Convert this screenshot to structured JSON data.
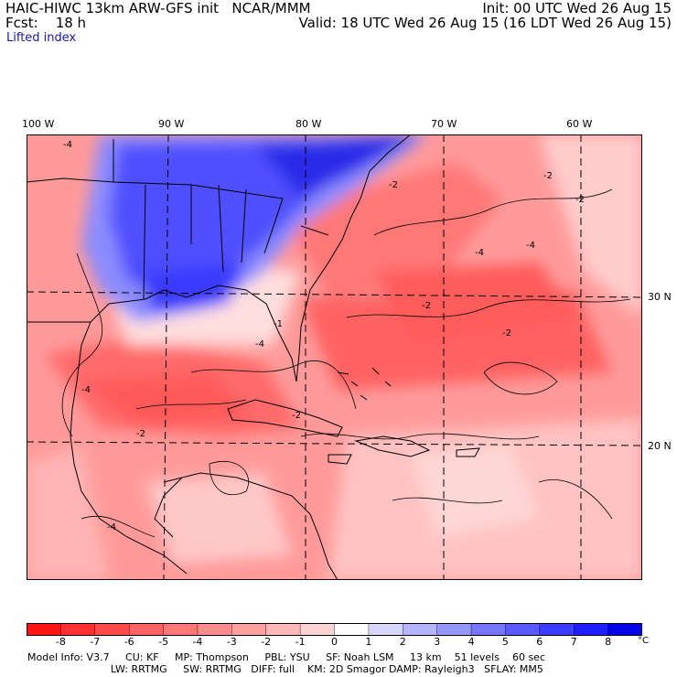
{
  "header": {
    "model": "HAIC-HIWC 13km ARW-GFS init",
    "org": "NCAR/MMM",
    "fcst": "Fcst:    18 h",
    "init": "Init: 00 UTC Wed 26 Aug 15",
    "valid": "Valid: 18 UTC Wed 26 Aug 15 (16 LDT Wed 26 Aug 15)",
    "field": "Lifted index"
  },
  "map": {
    "lon_labels": [
      "100 W",
      "90 W",
      "80 W",
      "70 W",
      "60 W"
    ],
    "lat_labels": [
      "30 N",
      "20 N"
    ],
    "contour_labels": [
      "-4",
      "-4",
      "-2",
      "-4",
      "-4",
      "-2",
      "-2",
      "-2",
      "-1",
      "-2",
      "-2",
      "-4",
      "-4",
      "-2"
    ]
  },
  "colorbar": {
    "ticks": [
      "-8",
      "-7",
      "-6",
      "-5",
      "-4",
      "-3",
      "-2",
      "-1",
      "0",
      "1",
      "2",
      "3",
      "4",
      "5",
      "6",
      "7",
      "8"
    ],
    "unit": "°C",
    "colors": [
      "#ff1414",
      "#ff3030",
      "#ff4a4a",
      "#ff6464",
      "#ff7878",
      "#ff8c8c",
      "#ffa0a0",
      "#ffb9b9",
      "#ffd2d2",
      "#ffffff",
      "#d6d6ff",
      "#b4b4ff",
      "#9696ff",
      "#7878ff",
      "#5a5aff",
      "#3c3cff",
      "#1e1eff",
      "#0000e6"
    ]
  },
  "footer": {
    "line1": "Model Info: V3.7     CU: KF     MP: Thompson     PBL: YSU     SF: Noah LSM     13 km    51 levels    60 sec",
    "line2": "                          LW: RRTMG     SW: RRTMG   DIFF: full    KM: 2D Smagor DAMP: Rayleigh3   SFLAY: MM5"
  }
}
